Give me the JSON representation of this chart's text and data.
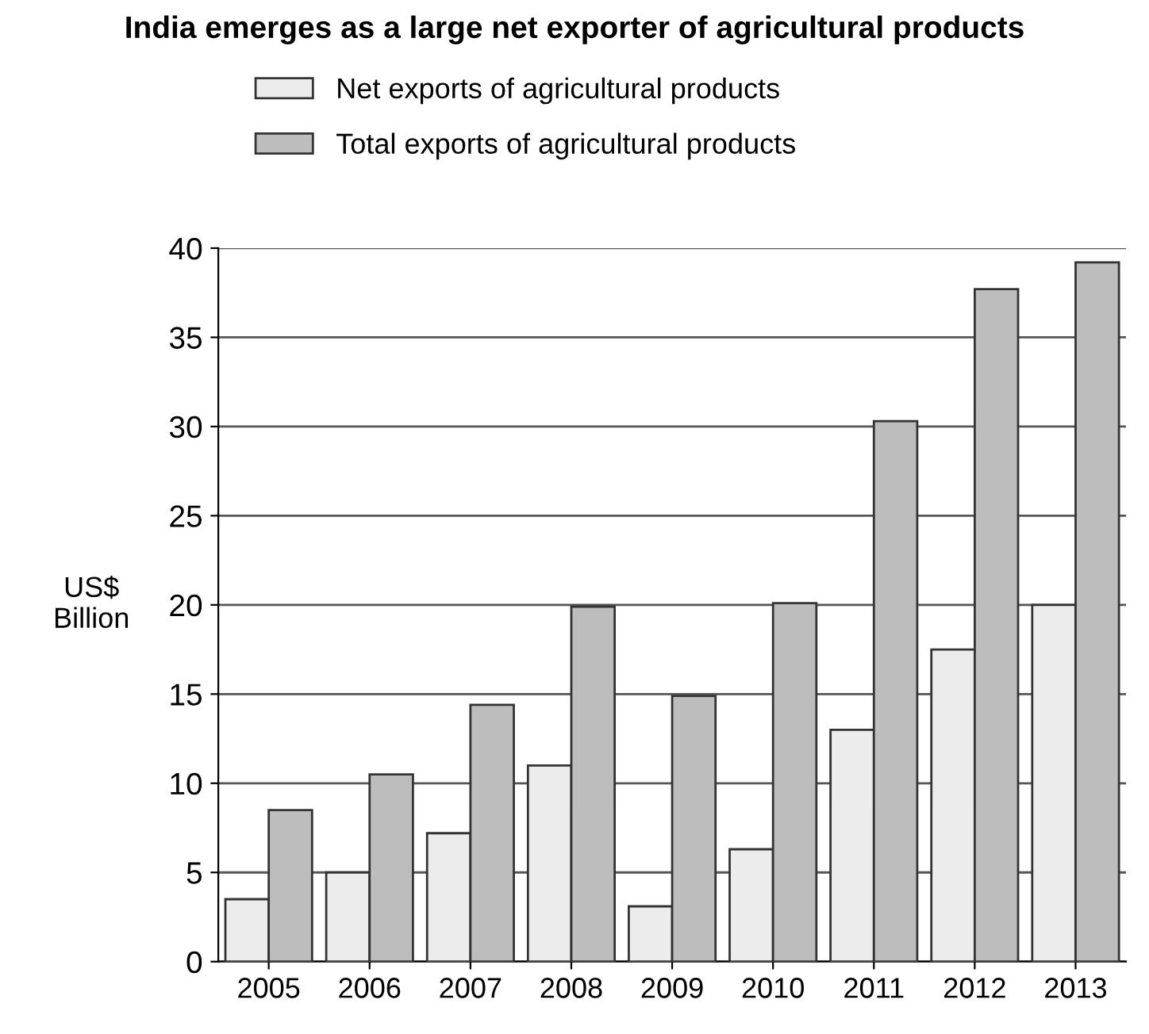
{
  "chart_data": {
    "type": "bar",
    "title": "India emerges as a large net exporter of agricultural products",
    "ylabel": "US$\nBillion",
    "categories": [
      "2005",
      "2006",
      "2007",
      "2008",
      "2009",
      "2010",
      "2011",
      "2012",
      "2013"
    ],
    "series": [
      {
        "name": "Net exports of agricultural products",
        "color": "#ececec",
        "values": [
          3.5,
          5.0,
          7.2,
          11.0,
          3.1,
          6.3,
          13.0,
          17.5,
          20.0
        ]
      },
      {
        "name": "Total exports of agricultural products",
        "color": "#bdbdbd",
        "values": [
          8.5,
          10.5,
          14.4,
          19.9,
          14.9,
          20.1,
          30.3,
          37.7,
          39.2
        ]
      }
    ],
    "ylim": [
      0,
      40
    ],
    "yticks": [
      0,
      5,
      10,
      15,
      20,
      25,
      30,
      35,
      40
    ],
    "grid": "y",
    "legend": "top"
  }
}
